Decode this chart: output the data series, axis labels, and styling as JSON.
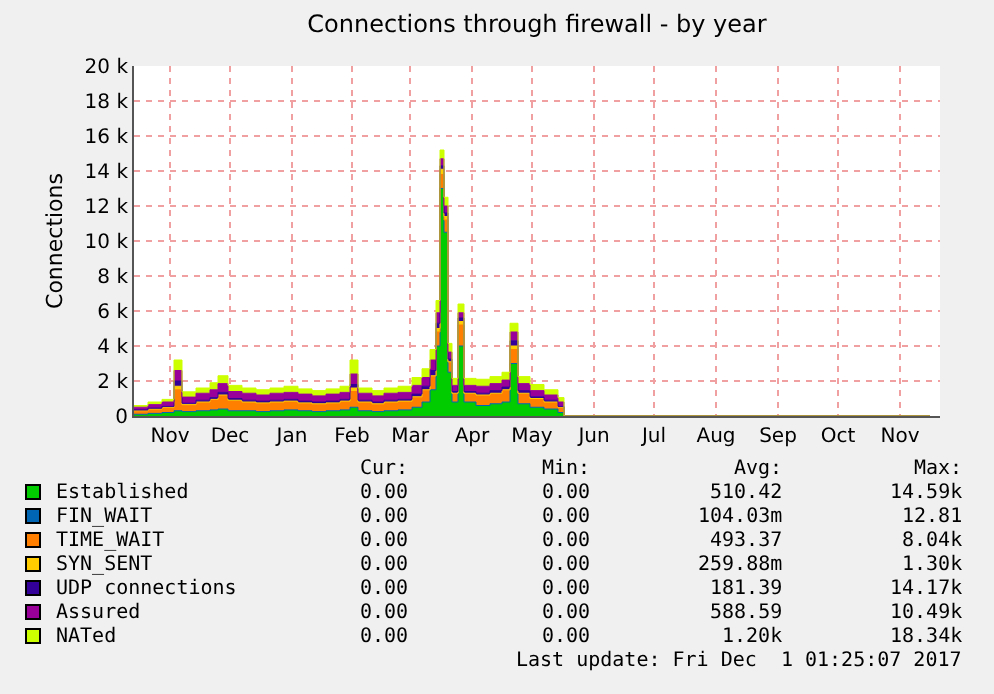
{
  "chart_data": {
    "type": "area",
    "stacked": true,
    "title": "Connections through firewall - by year",
    "ylabel": "Connections",
    "x": [
      "2016-10-29",
      "2016-11-05",
      "2016-11-12",
      "2016-11-18",
      "2016-11-22",
      "2016-11-29",
      "2016-12-06",
      "2016-12-10",
      "2016-12-15",
      "2016-12-22",
      "2016-12-29",
      "2017-01-05",
      "2017-01-12",
      "2017-01-19",
      "2017-01-26",
      "2017-02-02",
      "2017-02-09",
      "2017-02-14",
      "2017-02-18",
      "2017-02-25",
      "2017-03-03",
      "2017-03-10",
      "2017-03-17",
      "2017-03-22",
      "2017-03-26",
      "2017-03-29",
      "2017-03-31",
      "2017-04-02",
      "2017-04-04",
      "2017-04-06",
      "2017-04-09",
      "2017-04-12",
      "2017-04-18",
      "2017-04-25",
      "2017-05-01",
      "2017-05-05",
      "2017-05-09",
      "2017-05-15",
      "2017-05-22",
      "2017-05-29",
      "2017-06-01",
      "2017-12-01"
    ],
    "series": [
      {
        "name": "Established",
        "color": "#00cc00",
        "values": [
          100,
          150,
          200,
          300,
          250,
          300,
          350,
          400,
          300,
          300,
          250,
          300,
          350,
          300,
          250,
          300,
          350,
          500,
          300,
          250,
          300,
          350,
          500,
          800,
          1500,
          4000,
          13000,
          10500,
          2500,
          800,
          4000,
          800,
          600,
          700,
          800,
          3000,
          700,
          500,
          400,
          200,
          0,
          0
        ]
      },
      {
        "name": "FIN_WAIT",
        "color": "#0066b3",
        "values": [
          null,
          null,
          null,
          null,
          null,
          null,
          null,
          null,
          null,
          null,
          null,
          null,
          null,
          null,
          null,
          null,
          null,
          null,
          null,
          null,
          null,
          null,
          null,
          null,
          null,
          null,
          null,
          null,
          null,
          null,
          null,
          null,
          null,
          null,
          null,
          null,
          null,
          null,
          null,
          null,
          null,
          null
        ]
      },
      {
        "name": "TIME_WAIT",
        "color": "#ff8000",
        "values": [
          200,
          250,
          300,
          1200,
          400,
          500,
          600,
          800,
          600,
          500,
          500,
          500,
          500,
          450,
          450,
          450,
          500,
          900,
          500,
          450,
          500,
          500,
          600,
          700,
          800,
          800,
          800,
          700,
          600,
          500,
          1200,
          500,
          600,
          600,
          700,
          800,
          600,
          500,
          400,
          300,
          0,
          0
        ]
      },
      {
        "name": "SYN_SENT",
        "color": "#ffcc00",
        "values": [
          0,
          0,
          0,
          200,
          0,
          0,
          0,
          0,
          0,
          0,
          0,
          0,
          0,
          0,
          0,
          0,
          0,
          200,
          0,
          0,
          0,
          0,
          0,
          0,
          0,
          200,
          300,
          200,
          0,
          0,
          200,
          0,
          0,
          0,
          0,
          200,
          0,
          0,
          0,
          0,
          0,
          0
        ]
      },
      {
        "name": "UDP connections",
        "color": "#330099",
        "values": [
          50,
          50,
          50,
          300,
          80,
          100,
          100,
          150,
          100,
          100,
          100,
          100,
          100,
          100,
          100,
          100,
          100,
          200,
          100,
          100,
          100,
          100,
          150,
          200,
          300,
          300,
          200,
          200,
          150,
          100,
          200,
          100,
          100,
          150,
          150,
          300,
          150,
          100,
          100,
          50,
          0,
          0
        ]
      },
      {
        "name": "Assured",
        "color": "#990099",
        "values": [
          150,
          200,
          250,
          600,
          350,
          400,
          450,
          500,
          400,
          400,
          350,
          400,
          400,
          400,
          350,
          400,
          400,
          600,
          400,
          350,
          400,
          400,
          500,
          500,
          600,
          600,
          400,
          400,
          400,
          350,
          300,
          350,
          400,
          400,
          400,
          500,
          400,
          350,
          300,
          250,
          0,
          0
        ]
      },
      {
        "name": "NATed",
        "color": "#ccff00",
        "values": [
          100,
          150,
          150,
          600,
          300,
          300,
          400,
          450,
          350,
          300,
          300,
          300,
          350,
          300,
          300,
          300,
          350,
          800,
          300,
          300,
          300,
          350,
          450,
          500,
          600,
          700,
          500,
          500,
          500,
          400,
          500,
          400,
          400,
          400,
          450,
          500,
          400,
          350,
          300,
          250,
          0,
          0
        ]
      }
    ],
    "xlim": [
      "2016-10-29",
      "2017-12-06"
    ],
    "xticks": [
      {
        "value": "2016-11-16",
        "label": "Nov"
      },
      {
        "value": "2016-12-16",
        "label": "Dec"
      },
      {
        "value": "2017-01-16",
        "label": "Jan"
      },
      {
        "value": "2017-02-15",
        "label": "Feb"
      },
      {
        "value": "2017-03-16",
        "label": "Mar"
      },
      {
        "value": "2017-04-16",
        "label": "Apr"
      },
      {
        "value": "2017-05-16",
        "label": "May"
      },
      {
        "value": "2017-06-16",
        "label": "Jun"
      },
      {
        "value": "2017-07-16",
        "label": "Jul"
      },
      {
        "value": "2017-08-16",
        "label": "Aug"
      },
      {
        "value": "2017-09-16",
        "label": "Sep"
      },
      {
        "value": "2017-10-16",
        "label": "Oct"
      },
      {
        "value": "2017-11-16",
        "label": "Nov"
      }
    ],
    "ylim": [
      0,
      20000
    ],
    "yticks": [
      0,
      {
        "value": 2000,
        "label": "2 k"
      },
      {
        "value": 4000,
        "label": "4 k"
      },
      {
        "value": 6000,
        "label": "6 k"
      },
      {
        "value": 8000,
        "label": "8 k"
      },
      {
        "value": 10000,
        "label": "10 k"
      },
      {
        "value": 12000,
        "label": "12 k"
      },
      {
        "value": 14000,
        "label": "14 k"
      },
      {
        "value": 16000,
        "label": "16 k"
      },
      {
        "value": 18000,
        "label": "18 k"
      },
      {
        "value": 20000,
        "label": "20 k"
      }
    ],
    "grid": true,
    "legend": "bottom",
    "annotations": [
      "Cur: Min: Avg: Max:",
      "0.00 0.00 510.42 14.59k",
      "0.00 0.00 104.03m 12.81",
      "0.00 0.00 493.37 8.04k",
      "0.00 0.00 259.88m 1.30k",
      "0.00 0.00 181.39 14.17k",
      "0.00 0.00 588.59 10.49k",
      "0.00 0.00 1.20k 18.34k",
      "Last update: Fri Dec  1 01:25:07 2017"
    ]
  }
}
